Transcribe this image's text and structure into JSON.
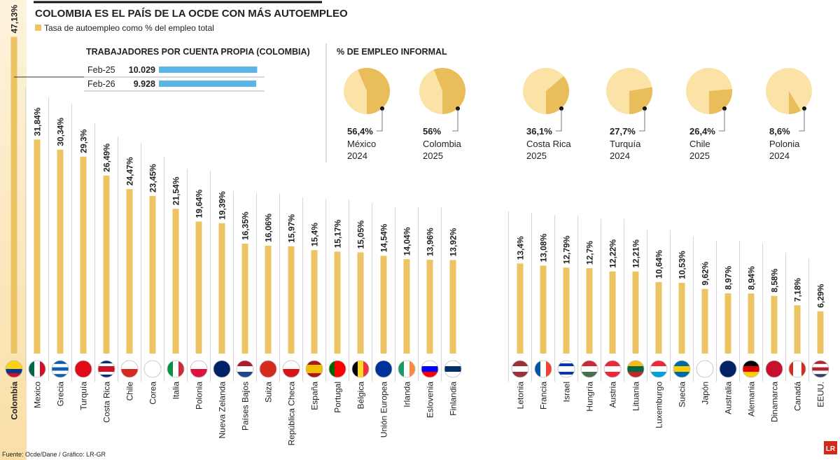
{
  "chart_data": [
    {
      "type": "bar",
      "title": "COLOMBIA ES EL PAÍS DE LA OCDE CON MÁS AUTOEMPLEO",
      "series_name": "Tasa de autoempleo como % del empleo total",
      "color": "#ecc463",
      "categories": [
        "Colombia",
        "Mexico",
        "Grecia",
        "Turquía",
        "Costa Rica",
        "Chile",
        "Corea",
        "Italia",
        "Polonia",
        "Nueva Zelanda",
        "Países Bajos",
        "Suiza",
        "República Checa",
        "España",
        "Portugal",
        "Bélgica",
        "Unión Europea",
        "Irlanda",
        "Eslovenia",
        "Finlandia",
        "Letonia",
        "Francia",
        "Israel",
        "Hungría",
        "Austria",
        "Lituania",
        "Luxemburgo",
        "Suecia",
        "Japón",
        "Australia",
        "Alemania",
        "Dinamarca",
        "Canadá",
        "EEUU."
      ],
      "values": [
        47.13,
        31.84,
        30.34,
        29.3,
        26.49,
        24.47,
        23.45,
        21.54,
        19.64,
        19.39,
        16.35,
        16.06,
        15.97,
        15.4,
        15.17,
        15.05,
        14.54,
        14.04,
        13.96,
        13.92,
        13.4,
        13.08,
        12.79,
        12.7,
        12.22,
        12.21,
        10.64,
        10.53,
        9.62,
        8.97,
        8.94,
        8.58,
        7.18,
        6.29
      ],
      "value_labels": [
        "47,13%",
        "31,84%",
        "30,34%",
        "29,3%",
        "26,49%",
        "24,47%",
        "23,45%",
        "21,54%",
        "19,64%",
        "19,39%",
        "16,35%",
        "16,06%",
        "15,97%",
        "15,4%",
        "15,17%",
        "15,05%",
        "14,54%",
        "14,04%",
        "13,96%",
        "13,92%",
        "13,4%",
        "13,08%",
        "12,79%",
        "12,7%",
        "12,22%",
        "12,21%",
        "10,64%",
        "10,53%",
        "9,62%",
        "8,97%",
        "8,94%",
        "8,58%",
        "7,18%",
        "6,29%"
      ]
    },
    {
      "type": "hbar",
      "title": "TRABAJADORES POR CUENTA PROPIA (COLOMBIA)",
      "color": "#5ab4e5",
      "categories": [
        "Feb-25",
        "Feb-26"
      ],
      "values": [
        10029,
        9928
      ],
      "value_labels": [
        "10.029",
        "9.928"
      ]
    },
    {
      "type": "pie",
      "title": "% DE EMPLEO INFORMAL",
      "color": "#e8bd5a",
      "rest_color": "#fbe3a8",
      "categories": [
        "México",
        "Colombia",
        "Costa Rica",
        "Turquía",
        "Chile",
        "Polonia"
      ],
      "years": [
        "2024",
        "2025",
        "2025",
        "2024",
        "2025",
        "2024"
      ],
      "values": [
        56.4,
        56,
        36.1,
        27.7,
        26.4,
        8.6
      ],
      "value_labels": [
        "56,4%",
        "56%",
        "36,1%",
        "27,7%",
        "26,4%",
        "8,6%"
      ]
    }
  ],
  "source": "Fuente: Ocde/Dane / Gráfico: LR-GR",
  "logo": "LR"
}
